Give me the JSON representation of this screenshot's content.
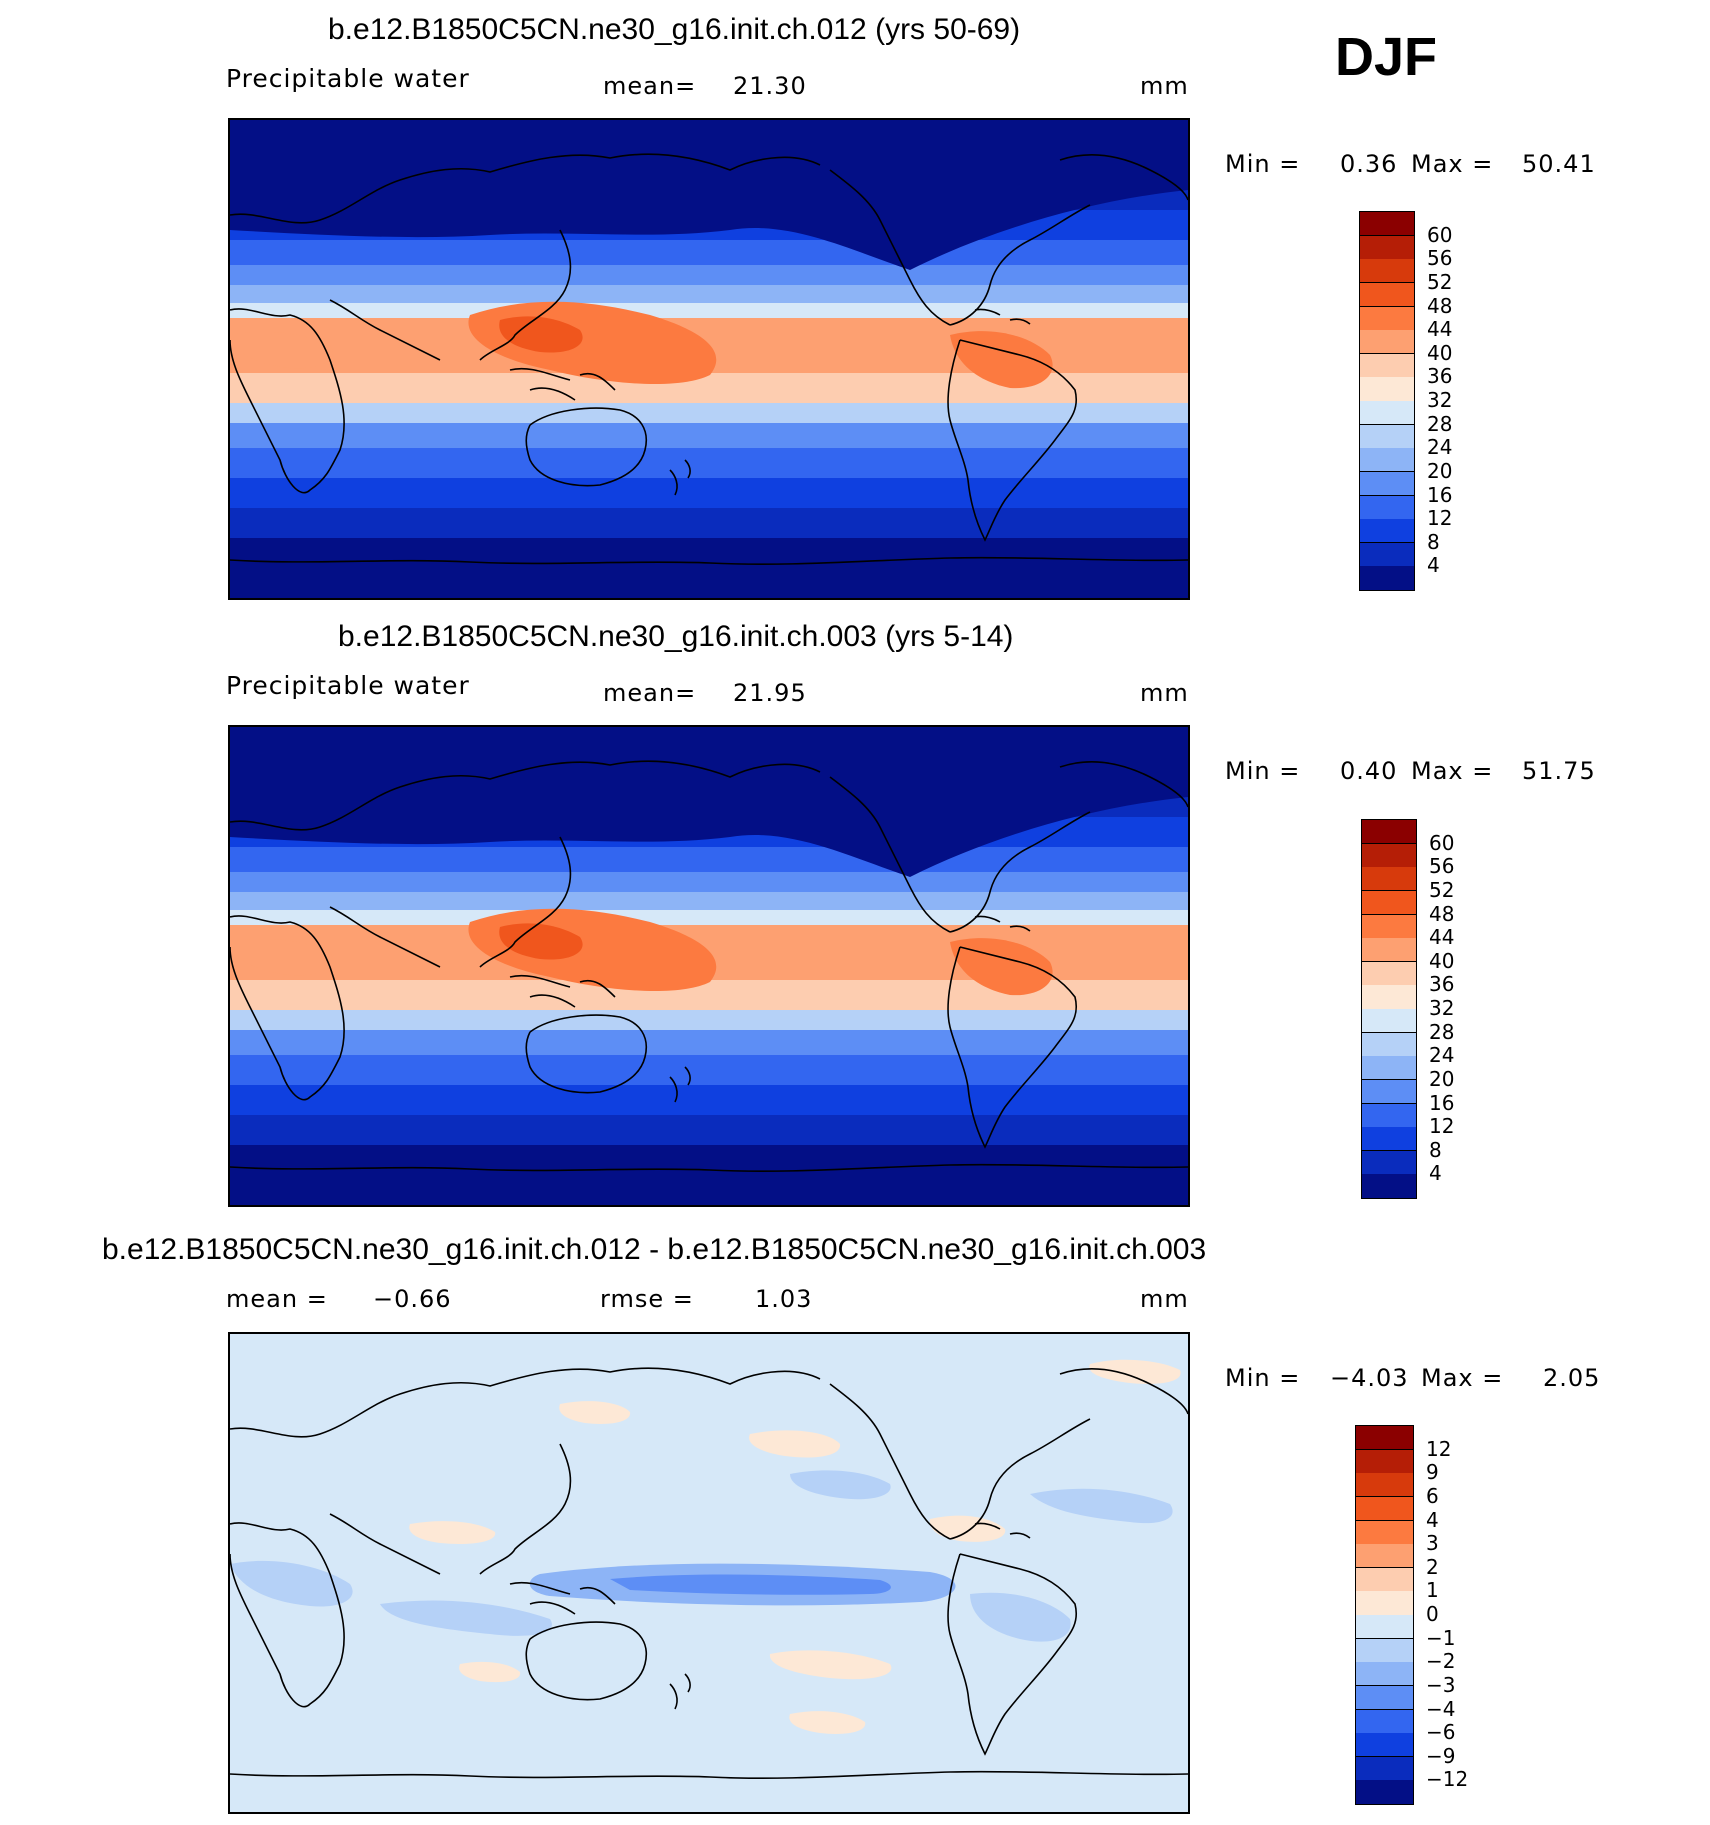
{
  "season": "DJF",
  "panels": [
    {
      "title": "b.e12.B1850C5CN.ne30_g16.init.ch.012 (yrs 50-69)",
      "variable": "Precipitable water",
      "mean_label": "mean=",
      "mean_value": "21.30",
      "units": "mm",
      "min_label": "Min =",
      "min_value": "0.36",
      "max_label": "Max =",
      "max_value": "50.41",
      "colorbar_labels": [
        "60",
        "56",
        "52",
        "48",
        "44",
        "40",
        "36",
        "32",
        "28",
        "24",
        "20",
        "16",
        "12",
        "8",
        "4"
      ],
      "colorbar_colors": [
        "#8b0000",
        "#b51e06",
        "#d73a0c",
        "#f0561d",
        "#fc7a40",
        "#fda071",
        "#fdcdb0",
        "#fde8d6",
        "#d6e8f8",
        "#b5d1f7",
        "#8db4f6",
        "#5d8ef5",
        "#3366f0",
        "#0f40e0",
        "#0a2cbd",
        "#030f86"
      ],
      "map_scheme": "precip"
    },
    {
      "title": "b.e12.B1850C5CN.ne30_g16.init.ch.003 (yrs 5-14)",
      "variable": "Precipitable water",
      "mean_label": "mean=",
      "mean_value": "21.95",
      "units": "mm",
      "min_label": "Min =",
      "min_value": "0.40",
      "max_label": "Max =",
      "max_value": "51.75",
      "colorbar_labels": [
        "60",
        "56",
        "52",
        "48",
        "44",
        "40",
        "36",
        "32",
        "28",
        "24",
        "20",
        "16",
        "12",
        "8",
        "4"
      ],
      "colorbar_colors": [
        "#8b0000",
        "#b51e06",
        "#d73a0c",
        "#f0561d",
        "#fc7a40",
        "#fda071",
        "#fdcdb0",
        "#fde8d6",
        "#d6e8f8",
        "#b5d1f7",
        "#8db4f6",
        "#5d8ef5",
        "#3366f0",
        "#0f40e0",
        "#0a2cbd",
        "#030f86"
      ],
      "map_scheme": "precip"
    },
    {
      "title": "b.e12.B1850C5CN.ne30_g16.init.ch.012 - b.e12.B1850C5CN.ne30_g16.init.ch.003",
      "variable": "",
      "mean_label": "mean =",
      "mean_value": "−0.66",
      "rmse_label": "rmse =",
      "rmse_value": "1.03",
      "units": "mm",
      "min_label": "Min =",
      "min_value": "−4.03",
      "max_label": "Max =",
      "max_value": "2.05",
      "colorbar_labels": [
        "12",
        "9",
        "6",
        "4",
        "3",
        "2",
        "1",
        "0",
        "−1",
        "−2",
        "−3",
        "−4",
        "−6",
        "−9",
        "−12"
      ],
      "colorbar_colors": [
        "#8b0000",
        "#b51e06",
        "#d73a0c",
        "#f0561d",
        "#fc7a40",
        "#fda071",
        "#fdcdb0",
        "#fde8d6",
        "#d6e8f8",
        "#b5d1f7",
        "#8db4f6",
        "#5d8ef5",
        "#3366f0",
        "#0f40e0",
        "#0a2cbd",
        "#030f86"
      ],
      "map_scheme": "diff"
    }
  ]
}
